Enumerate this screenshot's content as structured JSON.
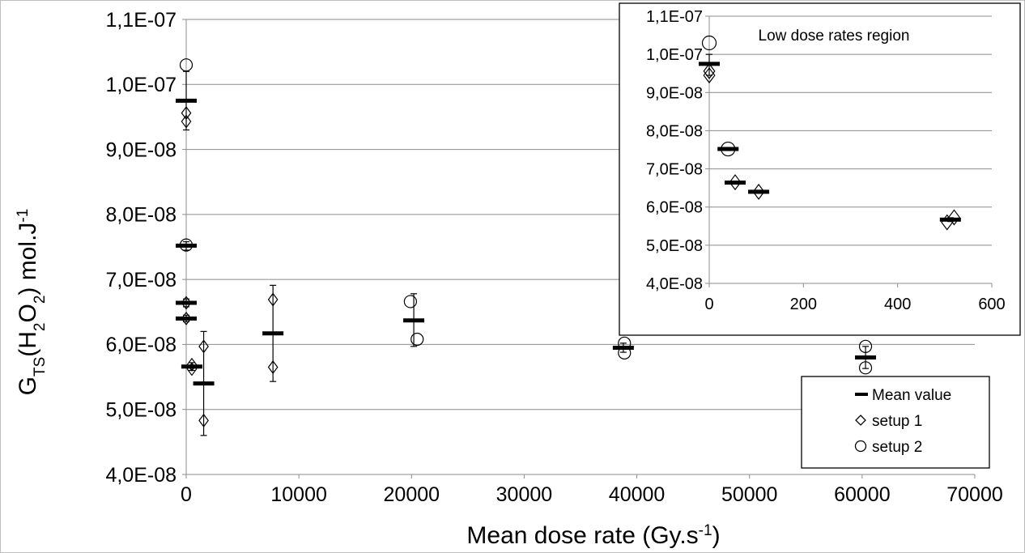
{
  "chart_data": [
    {
      "id": "main",
      "type": "scatter",
      "xlabel": "Mean dose rate (Gy.s",
      "xlabel_sup": "-1",
      "xlabel_close": ")",
      "ylabel_parts": {
        "g": "G",
        "ts": "TS",
        "open": "(H",
        "two_a": "2",
        "o": "O",
        "two_b": "2",
        "close": ") mol.J",
        "neg1": "-1"
      },
      "xlim": [
        0,
        70000
      ],
      "ylim": [
        4e-08,
        1.1e-07
      ],
      "x_ticks": [
        0,
        10000,
        20000,
        30000,
        40000,
        50000,
        60000,
        70000
      ],
      "x_tick_labels": [
        "0",
        "10000",
        "20000",
        "30000",
        "40000",
        "50000",
        "60000",
        "70000"
      ],
      "y_ticks": [
        4e-08,
        5e-08,
        6e-08,
        7e-08,
        8e-08,
        9e-08,
        1e-07,
        1.1e-07
      ],
      "y_tick_labels": [
        "4,0E-08",
        "5,0E-08",
        "6,0E-08",
        "7,0E-08",
        "8,0E-08",
        "9,0E-08",
        "1,0E-07",
        "1,1E-07"
      ],
      "grid": "horizontal",
      "legend_position": "bottom-right",
      "series": [
        {
          "name": "Mean value",
          "marker": "dash",
          "points": [
            {
              "x": 0,
              "y": 9.75e-08,
              "err_low": 9.3e-08,
              "err_high": 1.02e-07
            },
            {
              "x": 0,
              "y": 7.52e-08,
              "err_low": 7.45e-08,
              "err_high": 7.58e-08
            },
            {
              "x": 0,
              "y": 6.64e-08,
              "err_low": 6.58e-08,
              "err_high": 6.7e-08
            },
            {
              "x": 0,
              "y": 6.4e-08,
              "err_low": 6.35e-08,
              "err_high": 6.45e-08
            },
            {
              "x": 500,
              "y": 5.66e-08,
              "err_low": 5.6e-08,
              "err_high": 5.72e-08
            },
            {
              "x": 1550,
              "y": 5.4e-08,
              "err_low": 4.6e-08,
              "err_high": 6.2e-08
            },
            {
              "x": 7700,
              "y": 6.17e-08,
              "err_low": 5.43e-08,
              "err_high": 6.91e-08
            },
            {
              "x": 20200,
              "y": 6.37e-08,
              "err_low": 5.97e-08,
              "err_high": 6.78e-08
            },
            {
              "x": 38800,
              "y": 5.95e-08,
              "err_low": 5.88e-08,
              "err_high": 6.02e-08
            },
            {
              "x": 60300,
              "y": 5.8e-08,
              "err_low": 5.63e-08,
              "err_high": 5.97e-08
            }
          ]
        },
        {
          "name": "setup 1",
          "marker": "diamond",
          "points": [
            {
              "x": 0,
              "y": 9.56e-08
            },
            {
              "x": 0,
              "y": 9.43e-08
            },
            {
              "x": 0,
              "y": 6.64e-08
            },
            {
              "x": 0,
              "y": 6.4e-08
            },
            {
              "x": 500,
              "y": 5.69e-08
            },
            {
              "x": 500,
              "y": 5.62e-08
            },
            {
              "x": 1550,
              "y": 5.97e-08
            },
            {
              "x": 1550,
              "y": 4.83e-08
            },
            {
              "x": 7700,
              "y": 6.69e-08
            },
            {
              "x": 7700,
              "y": 5.65e-08
            }
          ]
        },
        {
          "name": "setup 2",
          "marker": "circle",
          "points": [
            {
              "x": 0,
              "y": 1.03e-07
            },
            {
              "x": 0,
              "y": 7.53e-08
            },
            {
              "x": 19900,
              "y": 6.66e-08
            },
            {
              "x": 20500,
              "y": 6.08e-08
            },
            {
              "x": 38900,
              "y": 6.02e-08
            },
            {
              "x": 38900,
              "y": 5.87e-08
            },
            {
              "x": 60300,
              "y": 5.97e-08
            },
            {
              "x": 60300,
              "y": 5.64e-08
            }
          ]
        }
      ],
      "legend": [
        "Mean value",
        "setup 1",
        "setup 2"
      ]
    },
    {
      "id": "inset",
      "type": "scatter",
      "annotation": "Low dose rates region",
      "xlim": [
        0,
        600
      ],
      "ylim": [
        4e-08,
        1.1e-07
      ],
      "x_ticks": [
        0,
        200,
        400,
        600
      ],
      "x_tick_labels": [
        "0",
        "200",
        "400",
        "600"
      ],
      "y_ticks": [
        4e-08,
        5e-08,
        6e-08,
        7e-08,
        8e-08,
        9e-08,
        1e-07,
        1.1e-07
      ],
      "y_tick_labels": [
        "4,0E-08",
        "5,0E-08",
        "6,0E-08",
        "7,0E-08",
        "8,0E-08",
        "9,0E-08",
        "1,0E-07",
        "1,1E-07"
      ],
      "grid": "horizontal",
      "series": [
        {
          "name": "Mean value",
          "marker": "dash",
          "points": [
            {
              "x": 0,
              "y": 9.75e-08,
              "err_low": 9.45e-08,
              "err_high": 1e-07
            },
            {
              "x": 40,
              "y": 7.52e-08,
              "err_low": 7.48e-08,
              "err_high": 7.56e-08
            },
            {
              "x": 55,
              "y": 6.64e-08,
              "err_low": 6.6e-08,
              "err_high": 6.68e-08
            },
            {
              "x": 105,
              "y": 6.4e-08,
              "err_low": 6.36e-08,
              "err_high": 6.44e-08
            },
            {
              "x": 512,
              "y": 5.67e-08,
              "err_low": 5.62e-08,
              "err_high": 5.72e-08
            }
          ]
        },
        {
          "name": "setup 1",
          "marker": "diamond",
          "points": [
            {
              "x": 0,
              "y": 9.56e-08
            },
            {
              "x": 0,
              "y": 9.45e-08
            },
            {
              "x": 55,
              "y": 6.65e-08
            },
            {
              "x": 105,
              "y": 6.4e-08
            },
            {
              "x": 505,
              "y": 5.6e-08
            },
            {
              "x": 520,
              "y": 5.73e-08
            }
          ]
        },
        {
          "name": "setup 2",
          "marker": "circle",
          "points": [
            {
              "x": 0,
              "y": 1.03e-07
            },
            {
              "x": 40,
              "y": 7.52e-08
            }
          ]
        }
      ]
    }
  ]
}
